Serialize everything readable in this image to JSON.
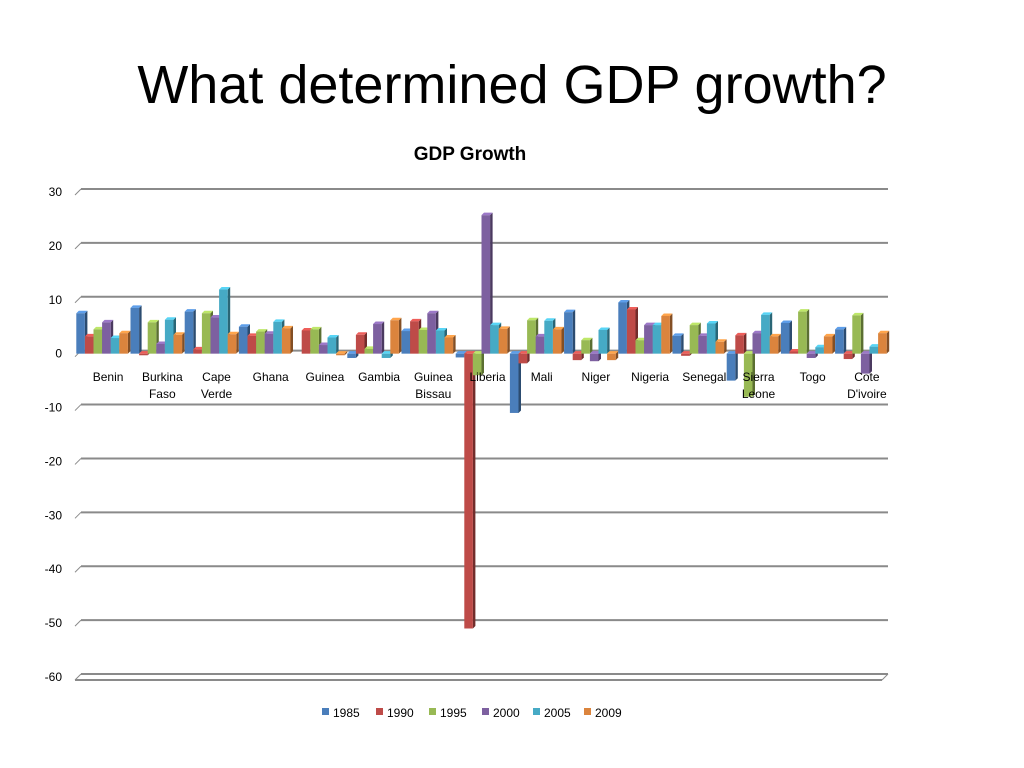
{
  "slide": {
    "title": "What determined GDP growth?"
  },
  "chart_data": {
    "type": "bar",
    "title": "GDP Growth",
    "xlabel": "",
    "ylabel": "",
    "ylim": [
      -60,
      30
    ],
    "yticks": [
      30,
      20,
      10,
      0,
      -10,
      -20,
      -30,
      -40,
      -50,
      -60
    ],
    "grid": true,
    "legend_position": "bottom",
    "categories": [
      [
        "Benin"
      ],
      [
        "Burkina",
        "Faso"
      ],
      [
        "Cape",
        "Verde"
      ],
      [
        "Ghana"
      ],
      [
        "Guinea"
      ],
      [
        "Gambia"
      ],
      [
        "Guinea",
        "Bissau"
      ],
      [
        "Liberia"
      ],
      [
        "Mali"
      ],
      [
        "Niger"
      ],
      [
        "Nigeria"
      ],
      [
        "Senegal"
      ],
      [
        "Sierra",
        "Leone"
      ],
      [
        "Togo"
      ],
      [
        "Cote",
        "D'ivoire"
      ]
    ],
    "series": [
      {
        "name": "1985",
        "color": "#4A7EBB",
        "values": [
          7.5,
          8.5,
          7.8,
          5.0,
          0,
          -0.8,
          4.2,
          -0.7,
          -11.0,
          7.7,
          9.5,
          3.3,
          -5.0,
          5.7,
          4.5
        ]
      },
      {
        "name": "1990",
        "color": "#BE4B48",
        "values": [
          3.2,
          -0.3,
          0.8,
          3.3,
          4.3,
          3.5,
          6.0,
          -51.0,
          -1.8,
          -1.2,
          8.2,
          -0.4,
          3.4,
          0.4,
          -1.0
        ]
      },
      {
        "name": "1995",
        "color": "#98B954",
        "values": [
          4.5,
          5.8,
          7.5,
          4.1,
          4.5,
          0.9,
          4.4,
          -4.0,
          6.2,
          2.5,
          2.5,
          5.3,
          -8.0,
          7.8,
          7.1
        ]
      },
      {
        "name": "2000",
        "color": "#7D60A0",
        "values": [
          5.8,
          1.8,
          6.7,
          3.7,
          1.6,
          5.5,
          7.5,
          25.7,
          3.2,
          -1.4,
          5.3,
          3.3,
          3.8,
          -0.8,
          -3.7
        ]
      },
      {
        "name": "2005",
        "color": "#46AAC5",
        "values": [
          2.9,
          6.3,
          11.9,
          5.9,
          3.0,
          -0.8,
          4.3,
          5.3,
          6.1,
          4.4,
          5.3,
          5.6,
          7.2,
          1.2,
          1.3
        ]
      },
      {
        "name": "2009",
        "color": "#DB843D",
        "values": [
          3.8,
          3.5,
          3.6,
          4.7,
          -0.3,
          6.2,
          3.0,
          4.6,
          4.5,
          -1.2,
          7.0,
          2.2,
          3.2,
          3.2,
          3.8
        ]
      }
    ]
  }
}
